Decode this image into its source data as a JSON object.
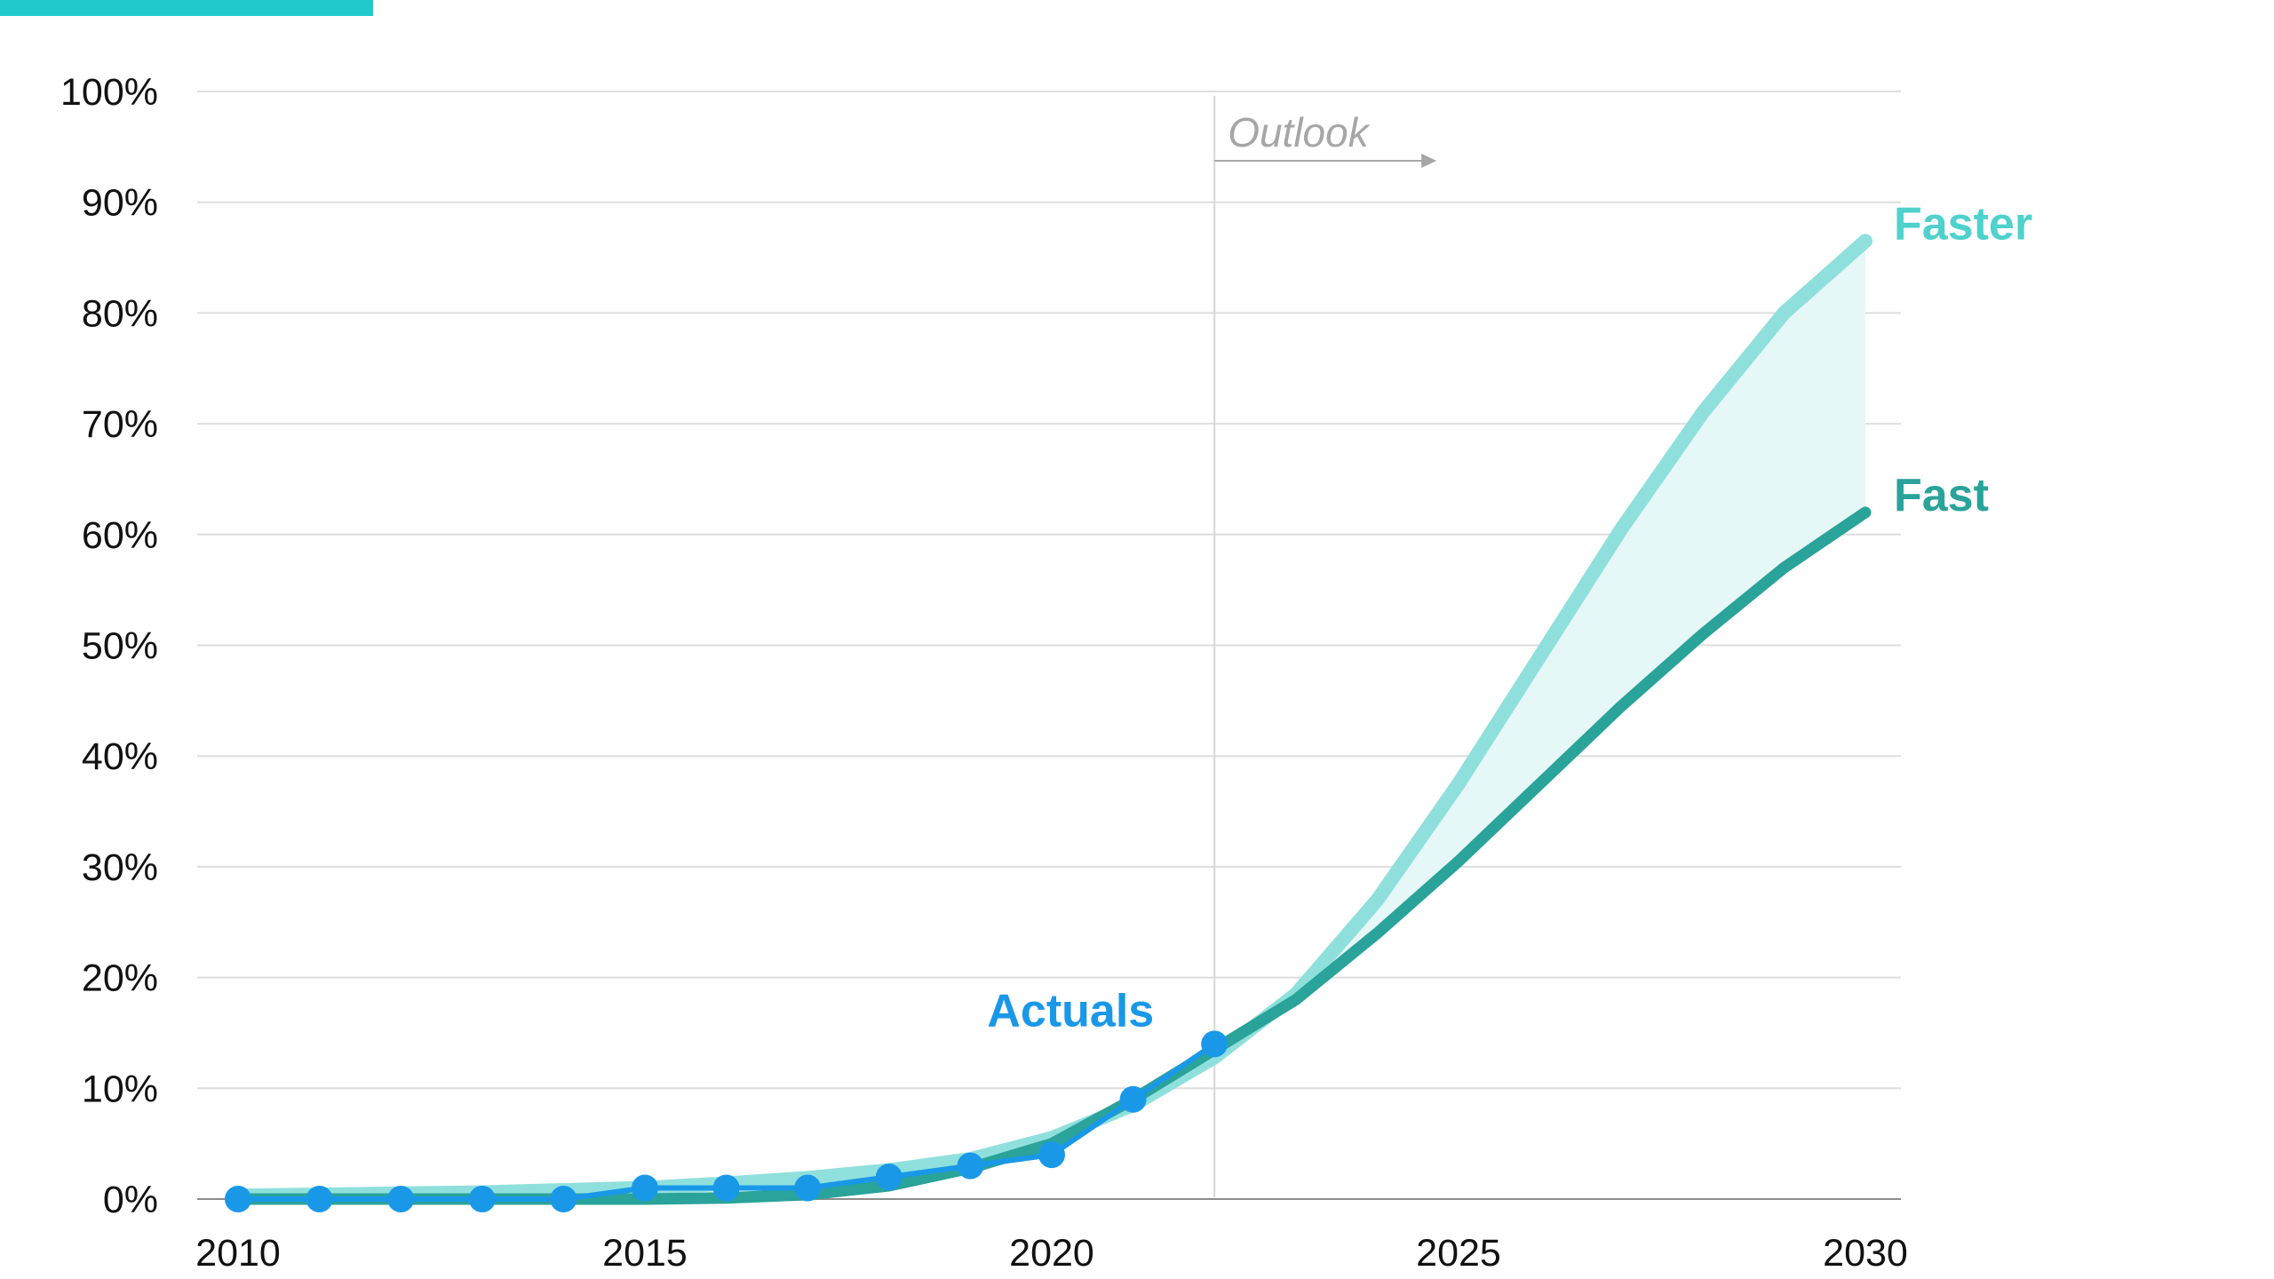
{
  "colors": {
    "accent_bar": "#21c9cc",
    "faster": "#8fe0dd",
    "fast": "#2aa39a",
    "actuals": "#1a98e8",
    "band": "#e6f7f7",
    "grid": "#dedede",
    "outlook": "#a6a6a6"
  },
  "chart_data": {
    "type": "line",
    "y_tick_labels": [
      "0%",
      "10%",
      "20%",
      "30%",
      "40%",
      "50%",
      "60%",
      "70%",
      "80%",
      "90%",
      "100%"
    ],
    "x_tick_labels": [
      "2010",
      "2015",
      "2020",
      "2025",
      "2030"
    ],
    "ylim": [
      0,
      100
    ],
    "xlim": [
      2010,
      2030
    ],
    "grid": true,
    "annotations": [
      {
        "text": "Outlook",
        "x": 2022
      }
    ],
    "series": [
      {
        "name": "Faster",
        "x": [
          2010,
          2011,
          2012,
          2013,
          2014,
          2015,
          2016,
          2017,
          2018,
          2019,
          2020,
          2021,
          2022,
          2023,
          2024,
          2025,
          2026,
          2027,
          2028,
          2029,
          2030
        ],
        "values": [
          0.3,
          0.4,
          0.5,
          0.6,
          0.8,
          1.0,
          1.4,
          1.9,
          2.6,
          3.6,
          5.5,
          8.5,
          12.8,
          18.5,
          27.0,
          37.5,
          49.0,
          60.5,
          71.0,
          80.0,
          86.5
        ]
      },
      {
        "name": "Fast",
        "x": [
          2010,
          2011,
          2012,
          2013,
          2014,
          2015,
          2016,
          2017,
          2018,
          2019,
          2020,
          2021,
          2022,
          2023,
          2024,
          2025,
          2026,
          2027,
          2028,
          2029,
          2030
        ],
        "values": [
          0.0,
          0.0,
          0.0,
          0.0,
          0.0,
          0.0,
          0.1,
          0.4,
          1.2,
          2.8,
          5.0,
          9.0,
          13.5,
          18.0,
          24.0,
          30.5,
          37.5,
          44.5,
          51.0,
          57.0,
          62.0
        ]
      },
      {
        "name": "Actuals",
        "x": [
          2010,
          2011,
          2012,
          2013,
          2014,
          2015,
          2016,
          2017,
          2018,
          2019,
          2020,
          2021,
          2022
        ],
        "values": [
          0,
          0,
          0,
          0,
          0,
          1,
          1,
          1,
          2,
          3,
          4,
          9,
          14
        ]
      }
    ]
  }
}
